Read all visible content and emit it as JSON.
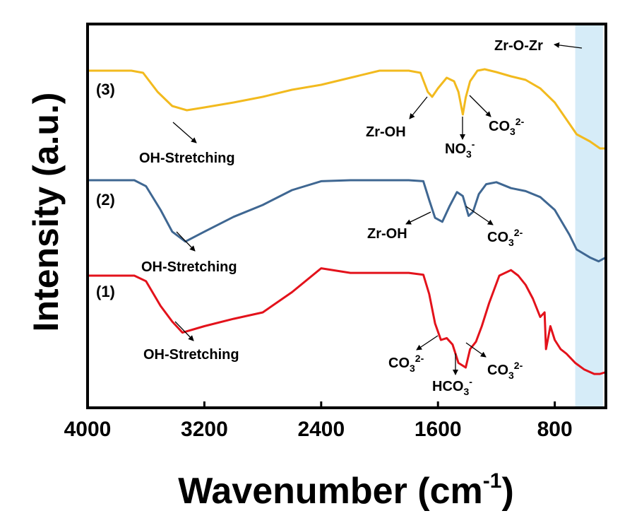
{
  "chart_data": {
    "type": "line",
    "xlabel": "Wavenumber (cm",
    "xlabel_sup": "-1",
    "xlabel_end": ")",
    "ylabel": "Intensity (a.u.)",
    "xlim": [
      4000,
      450
    ],
    "x_reversed": true,
    "xticks": [
      4000,
      3200,
      2400,
      1600,
      800
    ],
    "xtick_labels": [
      "4000",
      "3200",
      "2400",
      "1600",
      "800"
    ],
    "y_ticks_shown": false,
    "grid": false,
    "highlight_band": {
      "x_range": [
        660,
        470
      ],
      "color": "#d6ecf8"
    },
    "series": [
      {
        "name": "(1)",
        "color": "#e3121b",
        "points": [
          [
            4000,
            0
          ],
          [
            3680,
            0
          ],
          [
            3600,
            -0.06
          ],
          [
            3500,
            -0.33
          ],
          [
            3420,
            -0.5
          ],
          [
            3350,
            -0.62
          ],
          [
            3200,
            -0.55
          ],
          [
            3000,
            -0.47
          ],
          [
            2800,
            -0.4
          ],
          [
            2600,
            -0.18
          ],
          [
            2400,
            0.08
          ],
          [
            2200,
            0.03
          ],
          [
            1800,
            0.03
          ],
          [
            1700,
            0.01
          ],
          [
            1660,
            -0.2
          ],
          [
            1620,
            -0.52
          ],
          [
            1580,
            -0.7
          ],
          [
            1540,
            -0.68
          ],
          [
            1500,
            -0.75
          ],
          [
            1460,
            -0.95
          ],
          [
            1410,
            -1.0
          ],
          [
            1380,
            -0.8
          ],
          [
            1340,
            -0.72
          ],
          [
            1300,
            -0.55
          ],
          [
            1250,
            -0.3
          ],
          [
            1180,
            0.0
          ],
          [
            1100,
            0.06
          ],
          [
            1050,
            0.0
          ],
          [
            1000,
            -0.1
          ],
          [
            950,
            -0.25
          ],
          [
            900,
            -0.45
          ],
          [
            870,
            -0.4
          ],
          [
            860,
            -0.8
          ],
          [
            830,
            -0.55
          ],
          [
            800,
            -0.7
          ],
          [
            760,
            -0.8
          ],
          [
            720,
            -0.85
          ],
          [
            660,
            -0.95
          ],
          [
            600,
            -1.02
          ],
          [
            530,
            -1.07
          ],
          [
            490,
            -1.07
          ],
          [
            450,
            -1.05
          ]
        ]
      },
      {
        "name": "(2)",
        "color": "#3f6792",
        "points": [
          [
            4000,
            0
          ],
          [
            3680,
            0
          ],
          [
            3600,
            -0.06
          ],
          [
            3500,
            -0.3
          ],
          [
            3420,
            -0.52
          ],
          [
            3330,
            -0.62
          ],
          [
            3200,
            -0.52
          ],
          [
            3000,
            -0.37
          ],
          [
            2800,
            -0.25
          ],
          [
            2600,
            -0.1
          ],
          [
            2400,
            -0.01
          ],
          [
            2200,
            0.0
          ],
          [
            1800,
            0.0
          ],
          [
            1700,
            -0.01
          ],
          [
            1660,
            -0.2
          ],
          [
            1620,
            -0.38
          ],
          [
            1570,
            -0.42
          ],
          [
            1520,
            -0.26
          ],
          [
            1470,
            -0.12
          ],
          [
            1430,
            -0.16
          ],
          [
            1390,
            -0.36
          ],
          [
            1360,
            -0.32
          ],
          [
            1320,
            -0.14
          ],
          [
            1270,
            -0.04
          ],
          [
            1200,
            -0.02
          ],
          [
            1100,
            -0.08
          ],
          [
            1000,
            -0.11
          ],
          [
            900,
            -0.17
          ],
          [
            800,
            -0.3
          ],
          [
            700,
            -0.55
          ],
          [
            650,
            -0.7
          ],
          [
            560,
            -0.78
          ],
          [
            500,
            -0.82
          ],
          [
            450,
            -0.78
          ]
        ]
      },
      {
        "name": "(3)",
        "color": "#f2ba1e",
        "points": [
          [
            4000,
            0
          ],
          [
            3700,
            0
          ],
          [
            3620,
            -0.03
          ],
          [
            3520,
            -0.3
          ],
          [
            3420,
            -0.5
          ],
          [
            3320,
            -0.56
          ],
          [
            3200,
            -0.52
          ],
          [
            3000,
            -0.45
          ],
          [
            2800,
            -0.37
          ],
          [
            2600,
            -0.27
          ],
          [
            2400,
            -0.2
          ],
          [
            2200,
            -0.1
          ],
          [
            2000,
            0.0
          ],
          [
            1800,
            0.0
          ],
          [
            1720,
            -0.03
          ],
          [
            1670,
            -0.3
          ],
          [
            1640,
            -0.37
          ],
          [
            1600,
            -0.25
          ],
          [
            1540,
            -0.1
          ],
          [
            1490,
            -0.15
          ],
          [
            1460,
            -0.3
          ],
          [
            1430,
            -0.62
          ],
          [
            1410,
            -0.38
          ],
          [
            1380,
            -0.15
          ],
          [
            1330,
            0.0
          ],
          [
            1280,
            0.02
          ],
          [
            1200,
            -0.02
          ],
          [
            1100,
            -0.08
          ],
          [
            1000,
            -0.13
          ],
          [
            900,
            -0.25
          ],
          [
            800,
            -0.45
          ],
          [
            700,
            -0.75
          ],
          [
            650,
            -0.9
          ],
          [
            560,
            -1.0
          ],
          [
            490,
            -1.1
          ],
          [
            450,
            -1.1
          ]
        ]
      }
    ],
    "annotations": [
      {
        "text": "OH-Stretching",
        "series": "(3)",
        "x": 3320
      },
      {
        "text": "Zr-OH",
        "series": "(3)",
        "x": 1640
      },
      {
        "text": "NO3-",
        "series": "(3)",
        "x": 1430
      },
      {
        "text": "CO32-",
        "series": "(3)",
        "x": 1350
      },
      {
        "text": "Zr-O-Zr",
        "series": "(3)",
        "x": 560
      },
      {
        "text": "OH-Stretching",
        "series": "(2)",
        "x": 3320
      },
      {
        "text": "Zr-OH",
        "series": "(2)",
        "x": 1560
      },
      {
        "text": "CO32-",
        "series": "(2)",
        "x": 1380
      },
      {
        "text": "OH-Stretching",
        "series": "(1)",
        "x": 3330
      },
      {
        "text": "CO32-",
        "series": "(1)",
        "x": 1590
      },
      {
        "text": "HCO3-",
        "series": "(1)",
        "x": 1410
      },
      {
        "text": "CO32-",
        "series": "(1)",
        "x": 1370
      }
    ]
  },
  "labels": {
    "oh": "OH-Stretching",
    "zroh": "Zr-OH",
    "zrozr": "Zr-O-Zr",
    "co": "CO",
    "co_sub": "3",
    "co_sup": "2-",
    "no": "NO",
    "no_sub": "3",
    "no_sup": "-",
    "hco": "HCO",
    "hco_sub": "3",
    "hco_sup": "-"
  }
}
